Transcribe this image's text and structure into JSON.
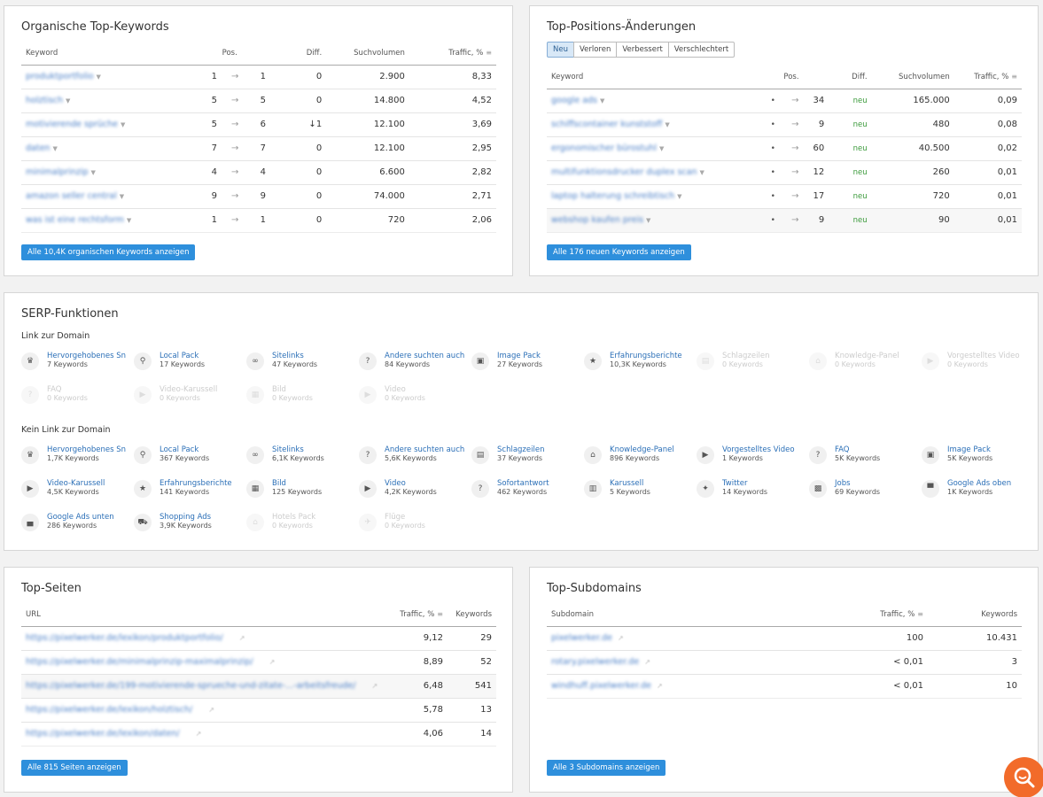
{
  "organic": {
    "title": "Organische Top-Keywords",
    "headers": {
      "keyword": "Keyword",
      "pos": "Pos.",
      "diff": "Diff.",
      "volume": "Suchvolumen",
      "traffic": "Traffic, %"
    },
    "rows": [
      {
        "kw": "produktportfolio",
        "p1": "1",
        "p2": "1",
        "diff": "0",
        "vol": "2.900",
        "tr": "8,33"
      },
      {
        "kw": "holztisch",
        "p1": "5",
        "p2": "5",
        "diff": "0",
        "vol": "14.800",
        "tr": "4,52"
      },
      {
        "kw": "motivierende sprüche",
        "p1": "5",
        "p2": "6",
        "diff": "1",
        "vol": "12.100",
        "tr": "3,69"
      },
      {
        "kw": "daten",
        "p1": "7",
        "p2": "7",
        "diff": "0",
        "vol": "12.100",
        "tr": "2,95"
      },
      {
        "kw": "minimalprinzip",
        "p1": "4",
        "p2": "4",
        "diff": "0",
        "vol": "6.600",
        "tr": "2,82"
      },
      {
        "kw": "amazon seller central",
        "p1": "9",
        "p2": "9",
        "diff": "0",
        "vol": "74.000",
        "tr": "2,71"
      },
      {
        "kw": "was ist eine rechtsform",
        "p1": "1",
        "p2": "1",
        "diff": "0",
        "vol": "720",
        "tr": "2,06"
      }
    ],
    "button": "Alle 10,4K organischen Keywords anzeigen"
  },
  "changes": {
    "title": "Top-Positions-Änderungen",
    "tabs": [
      "Neu",
      "Verloren",
      "Verbessert",
      "Verschlechtert"
    ],
    "headers": {
      "keyword": "Keyword",
      "pos": "Pos.",
      "diff": "Diff.",
      "volume": "Suchvolumen",
      "traffic": "Traffic, %"
    },
    "rows": [
      {
        "kw": "google ads",
        "p2": "34",
        "diff": "neu",
        "vol": "165.000",
        "tr": "0,09"
      },
      {
        "kw": "schiffscontainer kunststoff",
        "p2": "9",
        "diff": "neu",
        "vol": "480",
        "tr": "0,08"
      },
      {
        "kw": "ergonomischer bürostuhl",
        "p2": "60",
        "diff": "neu",
        "vol": "40.500",
        "tr": "0,02"
      },
      {
        "kw": "multifunktionsdrucker duplex scan",
        "p2": "12",
        "diff": "neu",
        "vol": "260",
        "tr": "0,01"
      },
      {
        "kw": "laptop halterung schreibtisch",
        "p2": "17",
        "diff": "neu",
        "vol": "720",
        "tr": "0,01"
      },
      {
        "kw": "webshop kaufen preis",
        "p2": "9",
        "diff": "neu",
        "vol": "90",
        "tr": "0,01"
      }
    ],
    "button": "Alle 176 neuen Keywords anzeigen"
  },
  "serp": {
    "title": "SERP-Funktionen",
    "link_title": "Link zur Domain",
    "nolink_title": "Kein Link zur Domain",
    "link": [
      {
        "name": "Hervorgehobenes Sn",
        "kw": "7 Keywords",
        "icon": "crown-icon",
        "g": "♛",
        "dis": false
      },
      {
        "name": "Local Pack",
        "kw": "17 Keywords",
        "icon": "map-pin-icon",
        "g": "⚲",
        "dis": false
      },
      {
        "name": "Sitelinks",
        "kw": "47 Keywords",
        "icon": "link-icon",
        "g": "∞",
        "dis": false
      },
      {
        "name": "Andere suchten auch",
        "kw": "84 Keywords",
        "icon": "question-box-icon",
        "g": "?",
        "dis": false
      },
      {
        "name": "Image Pack",
        "kw": "27 Keywords",
        "icon": "image-icon",
        "g": "▣",
        "dis": false
      },
      {
        "name": "Erfahrungsberichte",
        "kw": "10,3K Keywords",
        "icon": "star-icon",
        "g": "★",
        "dis": false
      },
      {
        "name": "Schlagzeilen",
        "kw": "0 Keywords",
        "icon": "news-icon",
        "g": "▤",
        "dis": true
      },
      {
        "name": "Knowledge-Panel",
        "kw": "0 Keywords",
        "icon": "graduation-icon",
        "g": "⌂",
        "dis": true
      },
      {
        "name": "Vorgestelltes Video",
        "kw": "0 Keywords",
        "icon": "video-box-icon",
        "g": "▶",
        "dis": true
      },
      {
        "name": "FAQ",
        "kw": "0 Keywords",
        "icon": "faq-icon",
        "g": "?",
        "dis": true
      },
      {
        "name": "Video-Karussell",
        "kw": "0 Keywords",
        "icon": "play-icon",
        "g": "▶",
        "dis": true
      },
      {
        "name": "Bild",
        "kw": "0 Keywords",
        "icon": "picture-icon",
        "g": "▦",
        "dis": true
      },
      {
        "name": "Video",
        "kw": "0 Keywords",
        "icon": "video-icon",
        "g": "▶",
        "dis": true
      }
    ],
    "nolink": [
      {
        "name": "Hervorgehobenes Sn",
        "kw": "1,7K Keywords",
        "icon": "crown-icon",
        "g": "♛",
        "dis": false
      },
      {
        "name": "Local Pack",
        "kw": "367 Keywords",
        "icon": "map-pin-icon",
        "g": "⚲",
        "dis": false
      },
      {
        "name": "Sitelinks",
        "kw": "6,1K Keywords",
        "icon": "link-icon",
        "g": "∞",
        "dis": false
      },
      {
        "name": "Andere suchten auch",
        "kw": "5,6K Keywords",
        "icon": "question-box-icon",
        "g": "?",
        "dis": false
      },
      {
        "name": "Schlagzeilen",
        "kw": "37 Keywords",
        "icon": "news-icon",
        "g": "▤",
        "dis": false
      },
      {
        "name": "Knowledge-Panel",
        "kw": "896 Keywords",
        "icon": "graduation-icon",
        "g": "⌂",
        "dis": false
      },
      {
        "name": "Vorgestelltes Video",
        "kw": "1 Keywords",
        "icon": "video-box-icon",
        "g": "▶",
        "dis": false
      },
      {
        "name": "FAQ",
        "kw": "5K Keywords",
        "icon": "faq-icon",
        "g": "?",
        "dis": false
      },
      {
        "name": "Image Pack",
        "kw": "5K Keywords",
        "icon": "image-icon",
        "g": "▣",
        "dis": false
      },
      {
        "name": "Video-Karussell",
        "kw": "4,5K Keywords",
        "icon": "play-icon",
        "g": "▶",
        "dis": false
      },
      {
        "name": "Erfahrungsberichte",
        "kw": "141 Keywords",
        "icon": "star-icon",
        "g": "★",
        "dis": false
      },
      {
        "name": "Bild",
        "kw": "125 Keywords",
        "icon": "picture-icon",
        "g": "▦",
        "dis": false
      },
      {
        "name": "Video",
        "kw": "4,2K Keywords",
        "icon": "video-icon",
        "g": "▶",
        "dis": false
      },
      {
        "name": "Sofortantwort",
        "kw": "462 Keywords",
        "icon": "question-icon",
        "g": "?",
        "dis": false
      },
      {
        "name": "Karussell",
        "kw": "5 Keywords",
        "icon": "carousel-icon",
        "g": "▥",
        "dis": false
      },
      {
        "name": "Twitter",
        "kw": "14 Keywords",
        "icon": "twitter-icon",
        "g": "✦",
        "dis": false
      },
      {
        "name": "Jobs",
        "kw": "69 Keywords",
        "icon": "briefcase-icon",
        "g": "▩",
        "dis": false
      },
      {
        "name": "Google Ads oben",
        "kw": "1K Keywords",
        "icon": "ads-top-icon",
        "g": "▀",
        "dis": false
      },
      {
        "name": "Google Ads unten",
        "kw": "286 Keywords",
        "icon": "ads-bottom-icon",
        "g": "▄",
        "dis": false
      },
      {
        "name": "Shopping Ads",
        "kw": "3,9K Keywords",
        "icon": "cart-icon",
        "g": "⛟",
        "dis": false
      },
      {
        "name": "Hotels Pack",
        "kw": "0 Keywords",
        "icon": "hotel-icon",
        "g": "⌂",
        "dis": true
      },
      {
        "name": "Flüge",
        "kw": "0 Keywords",
        "icon": "plane-icon",
        "g": "✈",
        "dis": true
      }
    ]
  },
  "pages": {
    "title": "Top-Seiten",
    "headers": {
      "url": "URL",
      "traffic": "Traffic, %",
      "keywords": "Keywords"
    },
    "rows": [
      {
        "url": "https://pixelwerker.de/lexikon/produktportfolio/",
        "tr": "9,12",
        "kw": "29"
      },
      {
        "url": "https://pixelwerker.de/minimalprinzip-maximalprinzip/",
        "tr": "8,89",
        "kw": "52"
      },
      {
        "url": "https://pixelwerker.de/199-motivierende-sprueche-und-zitate-...-arbeitsfreude/",
        "tr": "6,48",
        "kw": "541"
      },
      {
        "url": "https://pixelwerker.de/lexikon/holztisch/",
        "tr": "5,78",
        "kw": "13"
      },
      {
        "url": "https://pixelwerker.de/lexikon/daten/",
        "tr": "4,06",
        "kw": "14"
      }
    ],
    "button": "Alle 815 Seiten anzeigen"
  },
  "subdomains": {
    "title": "Top-Subdomains",
    "headers": {
      "subdomain": "Subdomain",
      "traffic": "Traffic, %",
      "keywords": "Keywords"
    },
    "rows": [
      {
        "sd": "pixelwerker.de",
        "tr": "100",
        "kw": "10.431"
      },
      {
        "sd": "rotary.pixelwerker.de",
        "tr": "< 0,01",
        "kw": "3"
      },
      {
        "sd": "windhuff.pixelwerker.de",
        "tr": "< 0,01",
        "kw": "10"
      }
    ],
    "button": "Alle 3 Subdomains anzeigen"
  },
  "icons": {
    "arrow": "→",
    "down_arrow": "↓",
    "dot": "•",
    "caret": "▼",
    "sort": "≡",
    "ext": "↗"
  },
  "colors": {
    "accent": "#2e8fdc",
    "link": "#2b6fb7",
    "negative": "#d0342c",
    "new": "#3b9a3b",
    "fab": "#f26b2a"
  }
}
